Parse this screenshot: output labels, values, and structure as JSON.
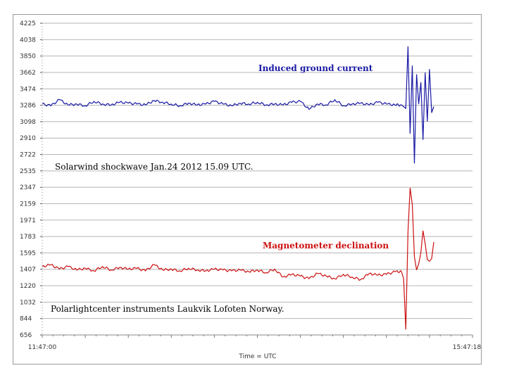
{
  "chart_data": {
    "type": "line",
    "title": "",
    "xlabel": "Time = UTC",
    "ylabel": "",
    "x_start": "11:47:00",
    "x_end": "15:47:18",
    "ylim": [
      656,
      4225
    ],
    "y_ticks": [
      "4225",
      "4038",
      "3850",
      "3662",
      "3474",
      "3286",
      "3098",
      "2910",
      "2722",
      "2535",
      "2347",
      "2159",
      "1971",
      "1783",
      "1595",
      "1407",
      "1220",
      "1032",
      "844",
      "656"
    ],
    "grid": true,
    "series": [
      {
        "name": "Induced ground current",
        "color": "#1a1aa6",
        "x_fraction": [
          0,
          0.02,
          0.04,
          0.06,
          0.08,
          0.1,
          0.12,
          0.14,
          0.16,
          0.18,
          0.2,
          0.22,
          0.24,
          0.26,
          0.28,
          0.3,
          0.32,
          0.34,
          0.36,
          0.38,
          0.4,
          0.42,
          0.44,
          0.46,
          0.48,
          0.5,
          0.52,
          0.54,
          0.56,
          0.58,
          0.6,
          0.62,
          0.64,
          0.66,
          0.68,
          0.7,
          0.72,
          0.74,
          0.76,
          0.78,
          0.8,
          0.82,
          0.835,
          0.845,
          0.85,
          0.855,
          0.86,
          0.865,
          0.87,
          0.875,
          0.88,
          0.885,
          0.89,
          0.895,
          0.9,
          0.905,
          0.91
        ],
        "values": [
          3300,
          3280,
          3350,
          3290,
          3300,
          3280,
          3330,
          3300,
          3290,
          3320,
          3310,
          3300,
          3290,
          3340,
          3320,
          3300,
          3280,
          3310,
          3290,
          3300,
          3330,
          3300,
          3280,
          3310,
          3300,
          3320,
          3290,
          3300,
          3290,
          3320,
          3330,
          3240,
          3300,
          3290,
          3350,
          3280,
          3300,
          3310,
          3290,
          3320,
          3300,
          3290,
          3290,
          3250,
          3960,
          2960,
          3740,
          2620,
          3640,
          3300,
          3550,
          2890,
          3660,
          3100,
          3700,
          3200,
          3270
        ]
      },
      {
        "name": "Magnetometer declination",
        "color": "#cc1111",
        "x_fraction": [
          0,
          0.02,
          0.04,
          0.06,
          0.08,
          0.1,
          0.12,
          0.14,
          0.16,
          0.18,
          0.2,
          0.22,
          0.24,
          0.26,
          0.28,
          0.3,
          0.32,
          0.34,
          0.36,
          0.38,
          0.4,
          0.42,
          0.44,
          0.46,
          0.48,
          0.5,
          0.52,
          0.54,
          0.56,
          0.58,
          0.6,
          0.62,
          0.64,
          0.66,
          0.68,
          0.7,
          0.72,
          0.74,
          0.76,
          0.78,
          0.8,
          0.82,
          0.835,
          0.84,
          0.845,
          0.85,
          0.855,
          0.86,
          0.865,
          0.87,
          0.875,
          0.88,
          0.885,
          0.89,
          0.895,
          0.9,
          0.905,
          0.91
        ],
        "values": [
          1440,
          1460,
          1410,
          1440,
          1400,
          1420,
          1390,
          1440,
          1400,
          1430,
          1410,
          1420,
          1390,
          1460,
          1400,
          1410,
          1390,
          1420,
          1400,
          1390,
          1410,
          1400,
          1390,
          1400,
          1380,
          1400,
          1370,
          1410,
          1320,
          1350,
          1330,
          1300,
          1360,
          1330,
          1300,
          1350,
          1320,
          1290,
          1360,
          1340,
          1350,
          1380,
          1380,
          1300,
          720,
          1840,
          2340,
          2150,
          1550,
          1400,
          1470,
          1600,
          1850,
          1700,
          1520,
          1500,
          1530,
          1720
        ]
      }
    ],
    "annotations": [
      {
        "id": "ground",
        "text": "Induced ground current",
        "color": "#1a1aa6",
        "bold": true
      },
      {
        "id": "shock",
        "text": "Solarwind shockwave  Jan.24 2012   15.09 UTC.",
        "color": "#000000",
        "bold": false
      },
      {
        "id": "mag",
        "text": "Magnetometer declination",
        "color": "#cc1111",
        "bold": true
      },
      {
        "id": "center",
        "text": "Polarlightcenter instruments Laukvik Lofoten Norway.",
        "color": "#000000",
        "bold": false
      }
    ]
  }
}
